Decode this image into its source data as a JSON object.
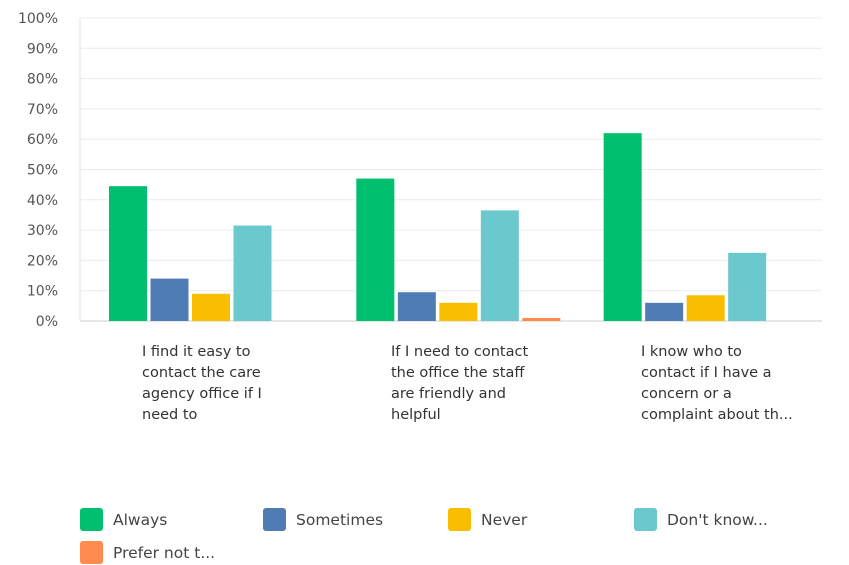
{
  "chart_data": {
    "type": "bar",
    "categories": [
      "I find it easy to contact the care agency office if I need to",
      "If I need to contact the office the staff are friendly and helpful",
      "I know who to contact if I have a concern or a complaint about th..."
    ],
    "category_lines": [
      [
        "I find it easy to",
        "contact the care",
        "agency office if I",
        "need to"
      ],
      [
        "If I need to contact",
        "the office the staff",
        "are friendly and",
        "helpful"
      ],
      [
        "I know who to",
        "contact if I have a",
        "concern or a",
        "complaint about th..."
      ]
    ],
    "series": [
      {
        "name": "Always",
        "color": "#00bf6f",
        "values": [
          44.5,
          47,
          62
        ]
      },
      {
        "name": "Sometimes",
        "color": "#507cb6",
        "values": [
          14,
          9.5,
          6
        ]
      },
      {
        "name": "Never",
        "color": "#f9be00",
        "values": [
          9,
          6,
          8.5
        ]
      },
      {
        "name": "Don't know...",
        "color": "#6bc8cd",
        "values": [
          31.5,
          36.5,
          22.5
        ]
      },
      {
        "name": "Prefer not t...",
        "color": "#ff8b4f",
        "values": [
          0,
          1,
          0
        ]
      }
    ],
    "ylim": [
      0,
      100
    ],
    "yticks": [
      "0%",
      "10%",
      "20%",
      "30%",
      "40%",
      "50%",
      "60%",
      "70%",
      "80%",
      "90%",
      "100%"
    ],
    "grid": true,
    "legend_position": "bottom"
  }
}
